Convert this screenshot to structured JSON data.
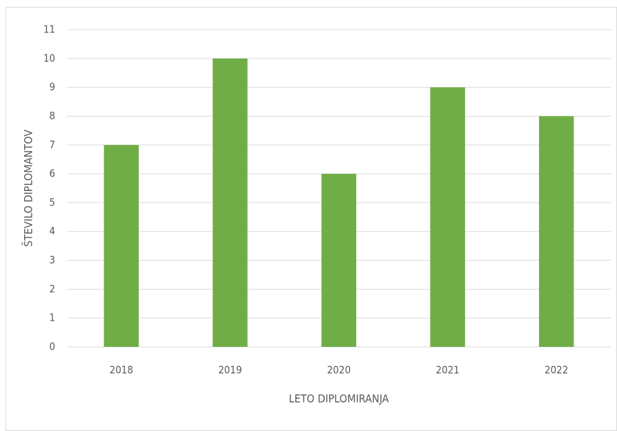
{
  "chart_data": {
    "type": "bar",
    "categories": [
      "2018",
      "2019",
      "2020",
      "2021",
      "2022"
    ],
    "values": [
      7,
      10,
      6,
      9,
      8
    ],
    "color": "#70ad47",
    "xlabel": "LETO DIPLOMIRANJA",
    "ylabel": "ŠTEVILO DIPLOMANTOV",
    "ylim": [
      0,
      11
    ],
    "yticks": [
      0,
      1,
      2,
      3,
      4,
      5,
      6,
      7,
      8,
      9,
      10,
      11
    ],
    "grid": true
  }
}
